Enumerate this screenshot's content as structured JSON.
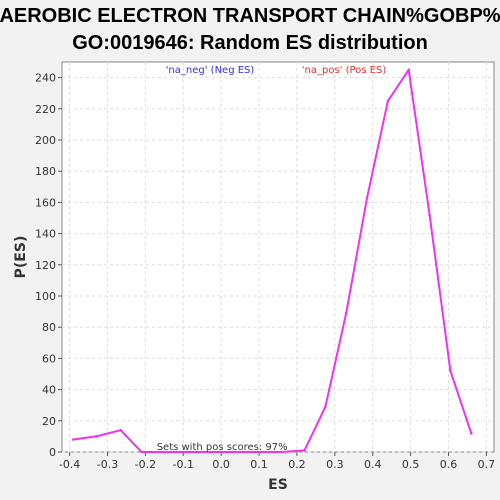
{
  "chart_data": {
    "type": "line",
    "title_line1": "AEROBIC ELECTRON TRANSPORT CHAIN%GOBP%",
    "title_line2": "GO:0019646: Random ES distribution",
    "xlabel": "ES",
    "ylabel": "P(ES)",
    "xlim": [
      -0.42,
      0.72
    ],
    "ylim": [
      0,
      250
    ],
    "x_ticks": [
      -0.4,
      -0.3,
      -0.2,
      -0.1,
      0.0,
      0.1,
      0.2,
      0.3,
      0.4,
      0.5,
      0.6,
      0.7
    ],
    "x_tick_labels": [
      "-0.4",
      "-0.3",
      "-0.2",
      "-0.1",
      "0.0",
      "0.1",
      "0.2",
      "0.3",
      "0.4",
      "0.5",
      "0.6",
      "0.7"
    ],
    "y_ticks": [
      0,
      20,
      40,
      60,
      80,
      100,
      120,
      140,
      160,
      180,
      200,
      220,
      240
    ],
    "grid": true,
    "legend": [
      {
        "label": "'na_neg' (Neg ES)",
        "color": "#3333cc"
      },
      {
        "label": "'na_pos' (Pos ES)",
        "color": "#e03030"
      }
    ],
    "annotation": "Sets with pos scores: 97%",
    "series": [
      {
        "color": "#ee33ee",
        "points": [
          [
            -0.39,
            8
          ],
          [
            -0.33,
            10
          ],
          [
            -0.265,
            14
          ],
          [
            -0.21,
            0
          ],
          [
            -0.15,
            0
          ],
          [
            -0.09,
            0
          ],
          [
            -0.03,
            0
          ],
          [
            0.03,
            0
          ],
          [
            0.09,
            0
          ],
          [
            0.16,
            0
          ],
          [
            0.22,
            1
          ],
          [
            0.275,
            29
          ],
          [
            0.33,
            89
          ],
          [
            0.385,
            163
          ],
          [
            0.44,
            225
          ],
          [
            0.495,
            245
          ],
          [
            0.55,
            152
          ],
          [
            0.605,
            52
          ],
          [
            0.66,
            12
          ]
        ]
      }
    ]
  }
}
